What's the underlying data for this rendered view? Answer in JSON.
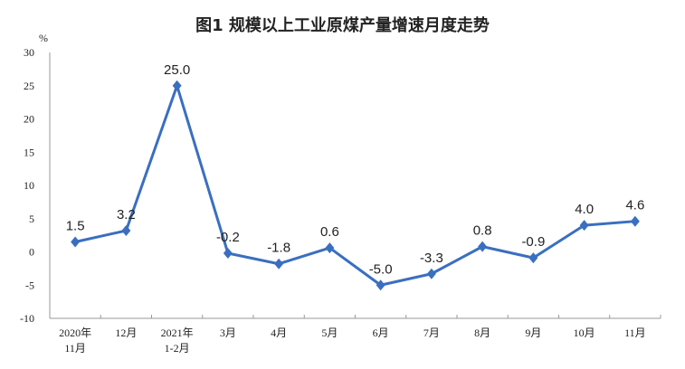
{
  "chart_data": {
    "type": "line",
    "title": "图1  规模以上工业原煤产量增速月度走势",
    "ylabel": "%",
    "xlabel": "",
    "categories": [
      [
        "2020年",
        "11月"
      ],
      [
        "12月"
      ],
      [
        "2021年",
        "1-2月"
      ],
      [
        "3月"
      ],
      [
        "4月"
      ],
      [
        "5月"
      ],
      [
        "6月"
      ],
      [
        "7月"
      ],
      [
        "8月"
      ],
      [
        "9月"
      ],
      [
        "10月"
      ],
      [
        "11月"
      ]
    ],
    "values": [
      1.5,
      3.2,
      25.0,
      -0.2,
      -1.8,
      0.6,
      -5.0,
      -3.3,
      0.8,
      -0.9,
      4.0,
      4.6
    ],
    "data_labels": [
      "1.5",
      "3.2",
      "25.0",
      "-0.2",
      "-1.8",
      "0.6",
      "-5.0",
      "-3.3",
      "0.8",
      "-0.9",
      "4.0",
      "4.6"
    ],
    "yticks": [
      "-10",
      "-5",
      "0",
      "5",
      "10",
      "15",
      "20",
      "25",
      "30"
    ],
    "ylim": [
      -10,
      30
    ],
    "grid": false,
    "line_color": "#3a6fc0"
  }
}
